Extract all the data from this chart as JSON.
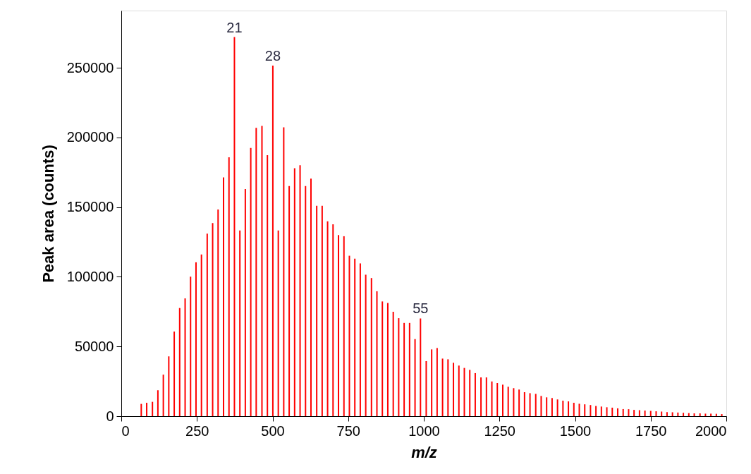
{
  "chart_data": {
    "type": "bar",
    "xlabel": "m/z",
    "ylabel": "Peak area (counts)",
    "x": [
      66,
      84,
      103,
      121,
      139,
      157,
      175,
      193,
      211,
      229,
      247,
      265,
      284,
      302,
      320,
      338,
      356,
      374,
      392,
      410,
      428,
      446,
      465,
      483,
      501,
      519,
      537,
      555,
      573,
      591,
      609,
      627,
      646,
      664,
      682,
      700,
      718,
      736,
      754,
      772,
      790,
      808,
      827,
      845,
      863,
      881,
      899,
      917,
      935,
      953,
      971,
      989,
      1008,
      1026,
      1044,
      1062,
      1080,
      1098,
      1116,
      1134,
      1152,
      1170,
      1189,
      1207,
      1225,
      1243,
      1261,
      1279,
      1297,
      1315,
      1333,
      1351,
      1370,
      1388,
      1406,
      1424,
      1442,
      1460,
      1478,
      1496,
      1514,
      1532,
      1551,
      1569,
      1587,
      1605,
      1623,
      1641,
      1659,
      1677,
      1695,
      1713,
      1731,
      1750,
      1768,
      1786,
      1804,
      1822,
      1840,
      1858,
      1876,
      1894,
      1913,
      1931,
      1949,
      1967,
      1985
    ],
    "values": [
      8800,
      9600,
      10300,
      18600,
      29800,
      42900,
      60700,
      77600,
      84500,
      100100,
      110400,
      116000,
      131000,
      138500,
      148300,
      171300,
      185700,
      272000,
      133200,
      162900,
      192500,
      206900,
      208200,
      187200,
      251500,
      133200,
      207300,
      165100,
      177900,
      180100,
      165100,
      170400,
      151000,
      151000,
      139800,
      137600,
      129900,
      129100,
      115100,
      113000,
      109600,
      101500,
      99100,
      89600,
      82300,
      81200,
      74900,
      70300,
      66900,
      66900,
      55300,
      70100,
      39500,
      47900,
      48900,
      41300,
      40800,
      38300,
      36300,
      34600,
      33200,
      30900,
      27800,
      27800,
      24900,
      23800,
      22600,
      21100,
      20100,
      19100,
      17200,
      16500,
      16000,
      14500,
      13500,
      13000,
      12000,
      11100,
      10600,
      9600,
      8900,
      8500,
      8000,
      7300,
      6900,
      6400,
      6100,
      5600,
      5100,
      5000,
      4500,
      4300,
      4000,
      3800,
      3500,
      3300,
      2900,
      2800,
      2600,
      2400,
      2200,
      2000,
      2000,
      1800,
      1800,
      1700,
      1500
    ],
    "color": "#ff0000",
    "xlim": [
      0,
      2000
    ],
    "xticks": [
      0,
      250,
      500,
      750,
      1000,
      1250,
      1500,
      1750,
      2000
    ],
    "ylim": [
      0,
      291000
    ],
    "yticks": [
      0,
      50000,
      100000,
      150000,
      200000,
      250000
    ],
    "grid": false,
    "annotations": [
      {
        "text": "21",
        "x": 374,
        "y": 272000
      },
      {
        "text": "28",
        "x": 501,
        "y": 251500
      },
      {
        "text": "55",
        "x": 989,
        "y": 70100
      }
    ]
  }
}
